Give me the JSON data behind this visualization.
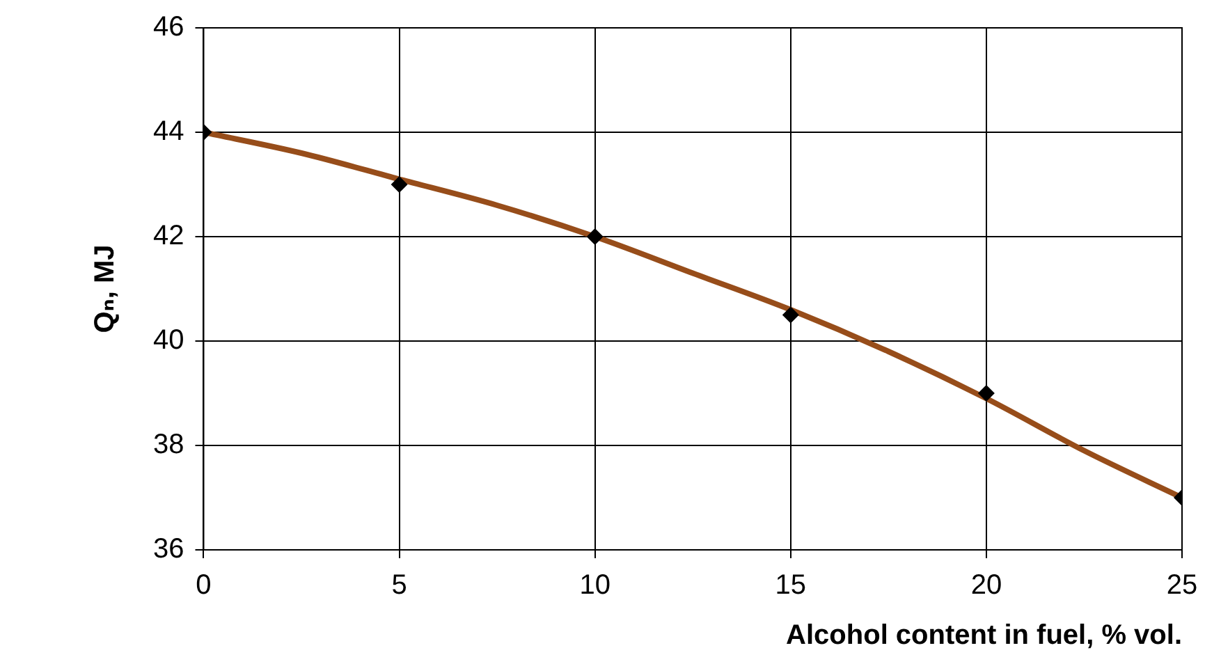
{
  "chart_data": {
    "type": "scatter",
    "xlabel": "Alcohol content in fuel, % vol.",
    "ylabel": "Qₙ, MJ",
    "xlim": [
      0,
      25
    ],
    "xticks": [
      0,
      5,
      10,
      15,
      20,
      25
    ],
    "ylim": [
      36,
      46
    ],
    "yticks": [
      36,
      38,
      40,
      42,
      44,
      46
    ],
    "grid": true,
    "legend": false,
    "series": [
      {
        "type": "line",
        "color": "#974d1a",
        "marker": "none",
        "line_style": "solid",
        "x": [
          0,
          2.5,
          5,
          7.5,
          10,
          12.5,
          15,
          17.5,
          20,
          22.5,
          25
        ],
        "values": [
          44.0,
          43.6,
          43.1,
          42.6,
          42.0,
          41.3,
          40.6,
          39.8,
          38.9,
          37.9,
          37.0
        ]
      },
      {
        "type": "scatter",
        "color": "#000000",
        "marker": "diamond",
        "x": [
          0,
          5,
          10,
          15,
          20,
          25
        ],
        "values": [
          44,
          43,
          42,
          40.5,
          39,
          37
        ]
      }
    ]
  }
}
